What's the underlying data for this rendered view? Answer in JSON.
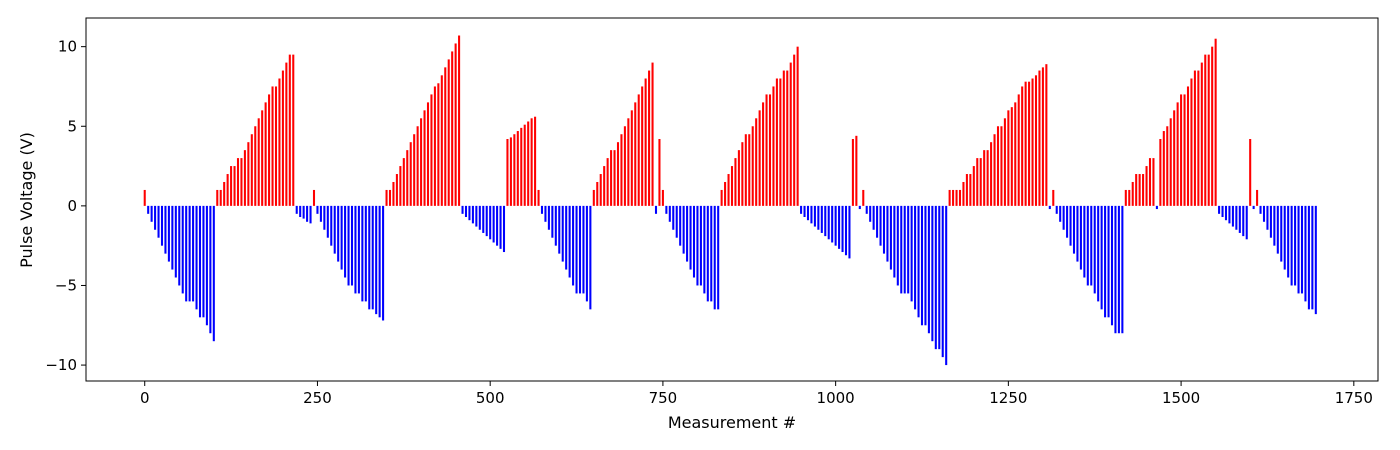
{
  "chart_data": {
    "type": "bar",
    "title": "",
    "xlabel": "Measurement #",
    "ylabel": "Pulse Voltage (V)",
    "xlim": [
      -85,
      1785
    ],
    "ylim": [
      -11,
      11.8
    ],
    "xticks": [
      0,
      250,
      500,
      750,
      1000,
      1250,
      1500,
      1750
    ],
    "yticks": [
      -10,
      -5,
      0,
      5,
      10
    ],
    "xtick_labels": [
      "0",
      "250",
      "500",
      "750",
      "1000",
      "1250",
      "1500",
      "1750"
    ],
    "ytick_labels": [
      "−10",
      "−5",
      "0",
      "5",
      "10"
    ],
    "grid": false,
    "colors": {
      "positive": "#ff0000",
      "negative": "#0000ff",
      "axis": "#000000"
    },
    "bar_spacing": 5,
    "values": [
      1,
      -0.5,
      -1,
      -1.5,
      -2,
      -2.5,
      -3,
      -3.5,
      -4,
      -4.5,
      -5,
      -5.5,
      -6,
      -6,
      -6,
      -6.5,
      -7,
      -7,
      -7.5,
      -8,
      -8.5,
      1,
      1,
      1.5,
      2,
      2.5,
      2.5,
      3,
      3,
      3.5,
      4,
      4.5,
      5,
      5.5,
      6,
      6.5,
      7,
      7.5,
      7.5,
      8,
      8.5,
      9,
      9.5,
      9.5,
      -0.5,
      -0.7,
      -0.8,
      -1,
      -1.1,
      1,
      -0.5,
      -1,
      -1.5,
      -2,
      -2.5,
      -3,
      -3.5,
      -4,
      -4.5,
      -5,
      -5,
      -5.5,
      -5.5,
      -6,
      -6,
      -6.5,
      -6.5,
      -6.8,
      -7,
      -7.2,
      1,
      1,
      1.5,
      2,
      2.5,
      3,
      3.5,
      4,
      4.5,
      5,
      5.5,
      6,
      6.5,
      7,
      7.5,
      7.7,
      8.2,
      8.7,
      9.2,
      9.7,
      10.2,
      10.7,
      -0.5,
      -0.7,
      -0.9,
      -1.1,
      -1.3,
      -1.5,
      -1.7,
      -1.9,
      -2.1,
      -2.3,
      -2.5,
      -2.7,
      -2.9,
      4.2,
      4.3,
      4.5,
      4.7,
      4.9,
      5.1,
      5.3,
      5.5,
      5.6,
      1,
      -0.5,
      -1,
      -1.5,
      -2,
      -2.5,
      -3,
      -3.5,
      -4,
      -4.5,
      -5,
      -5.5,
      -5.5,
      -5.5,
      -6,
      -6.5,
      1,
      1.5,
      2,
      2.5,
      3,
      3.5,
      3.5,
      4,
      4.5,
      5,
      5.5,
      6,
      6.5,
      7,
      7.5,
      8,
      8.5,
      9,
      -0.5,
      4.2,
      1,
      -0.5,
      -1,
      -1.5,
      -2,
      -2.5,
      -3,
      -3.5,
      -4,
      -4.5,
      -5,
      -5,
      -5.5,
      -6,
      -6,
      -6.5,
      -6.5,
      1,
      1.5,
      2,
      2.5,
      3,
      3.5,
      4,
      4.5,
      4.5,
      5,
      5.5,
      6,
      6.5,
      7,
      7,
      7.5,
      8,
      8,
      8.5,
      8.5,
      9,
      9.5,
      10,
      -0.5,
      -0.7,
      -0.9,
      -1.1,
      -1.3,
      -1.5,
      -1.7,
      -1.9,
      -2.1,
      -2.3,
      -2.5,
      -2.7,
      -2.9,
      -3.1,
      -3.3,
      4.2,
      4.4,
      -0.2,
      1,
      -0.5,
      -1,
      -1.5,
      -2,
      -2.5,
      -3,
      -3.5,
      -4,
      -4.5,
      -5,
      -5.5,
      -5.5,
      -5.5,
      -6,
      -6.5,
      -7,
      -7.5,
      -7.5,
      -8,
      -8.5,
      -9,
      -9,
      -9.5,
      -10,
      1,
      1,
      1,
      1,
      1.5,
      2,
      2,
      2.5,
      3,
      3,
      3.5,
      3.5,
      4,
      4.5,
      5,
      5,
      5.5,
      6,
      6.2,
      6.5,
      7,
      7.5,
      7.8,
      7.8,
      8,
      8.2,
      8.5,
      8.7,
      8.9,
      -0.2,
      1,
      -0.5,
      -1,
      -1.5,
      -2,
      -2.5,
      -3,
      -3.5,
      -4,
      -4.5,
      -5,
      -5,
      -5.5,
      -6,
      -6.5,
      -7,
      -7,
      -7.5,
      -8,
      -8,
      -8,
      1,
      1,
      1.5,
      2,
      2,
      2,
      2.5,
      3,
      3,
      -0.2,
      4.2,
      4.7,
      5,
      5.5,
      6,
      6.5,
      7,
      7,
      7.5,
      8,
      8.5,
      8.5,
      9,
      9.5,
      9.5,
      10,
      10.5,
      -0.5,
      -0.7,
      -0.9,
      -1.1,
      -1.3,
      -1.5,
      -1.7,
      -1.9,
      -2.1,
      4.2,
      -0.2,
      1,
      -0.5,
      -1,
      -1.5,
      -2,
      -2.5,
      -3,
      -3.5,
      -4,
      -4.5,
      -5,
      -5,
      -5.5,
      -5.5,
      -6,
      -6.5,
      -6.5,
      -6.8
    ]
  }
}
